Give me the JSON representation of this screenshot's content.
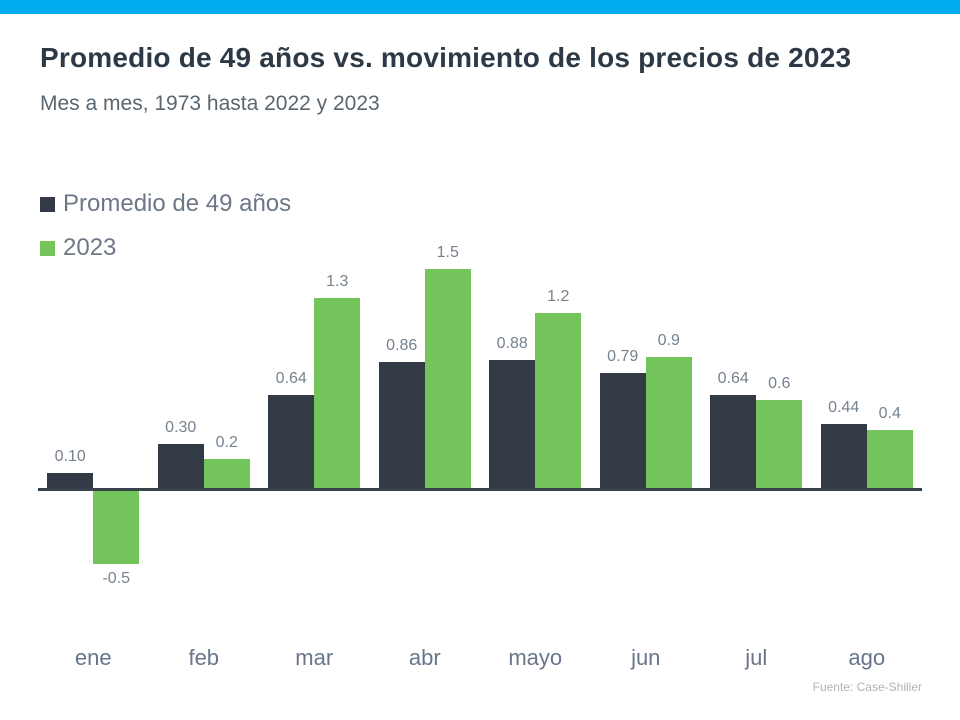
{
  "page": {
    "top_strip_color": "#00aeef",
    "background_color": "#ffffff"
  },
  "header": {
    "title": "Promedio de 49 años vs. movimiento de los precios de 2023",
    "subtitle": "Mes a mes, 1973 hasta 2022 y 2023"
  },
  "legend": {
    "items": [
      {
        "label": "Promedio de 49 años",
        "color": "#323a45"
      },
      {
        "label": "2023",
        "color": "#74c45c"
      }
    ]
  },
  "chart_data": {
    "type": "bar",
    "categories": [
      "ene",
      "feb",
      "mar",
      "abr",
      "mayo",
      "jun",
      "jul",
      "ago"
    ],
    "series": [
      {
        "name": "Promedio de 49 años",
        "color": "#323a45",
        "values": [
          0.1,
          0.3,
          0.64,
          0.86,
          0.88,
          0.79,
          0.64,
          0.44
        ],
        "labels": [
          "0.10",
          "0.30",
          "0.64",
          "0.86",
          "0.88",
          "0.79",
          "0.64",
          "0.44"
        ]
      },
      {
        "name": "2023",
        "color": "#74c45c",
        "values": [
          -0.5,
          0.2,
          1.3,
          1.5,
          1.2,
          0.9,
          0.6,
          0.4
        ],
        "labels": [
          "-0.5",
          "0.2",
          "1.3",
          "1.5",
          "1.2",
          "0.9",
          "0.6",
          "0.4"
        ]
      }
    ],
    "title": "Promedio de 49 años vs. movimiento de los precios de 2023",
    "xlabel": "",
    "ylabel": "",
    "ylim": [
      -0.6,
      1.6
    ],
    "grid": false,
    "legend_position": "top-left",
    "value_labels_shown": true,
    "label_color": "#76828f",
    "axis_line_color": "#39414b"
  },
  "footer": {
    "source": "Fuente: Case-Shiller"
  }
}
